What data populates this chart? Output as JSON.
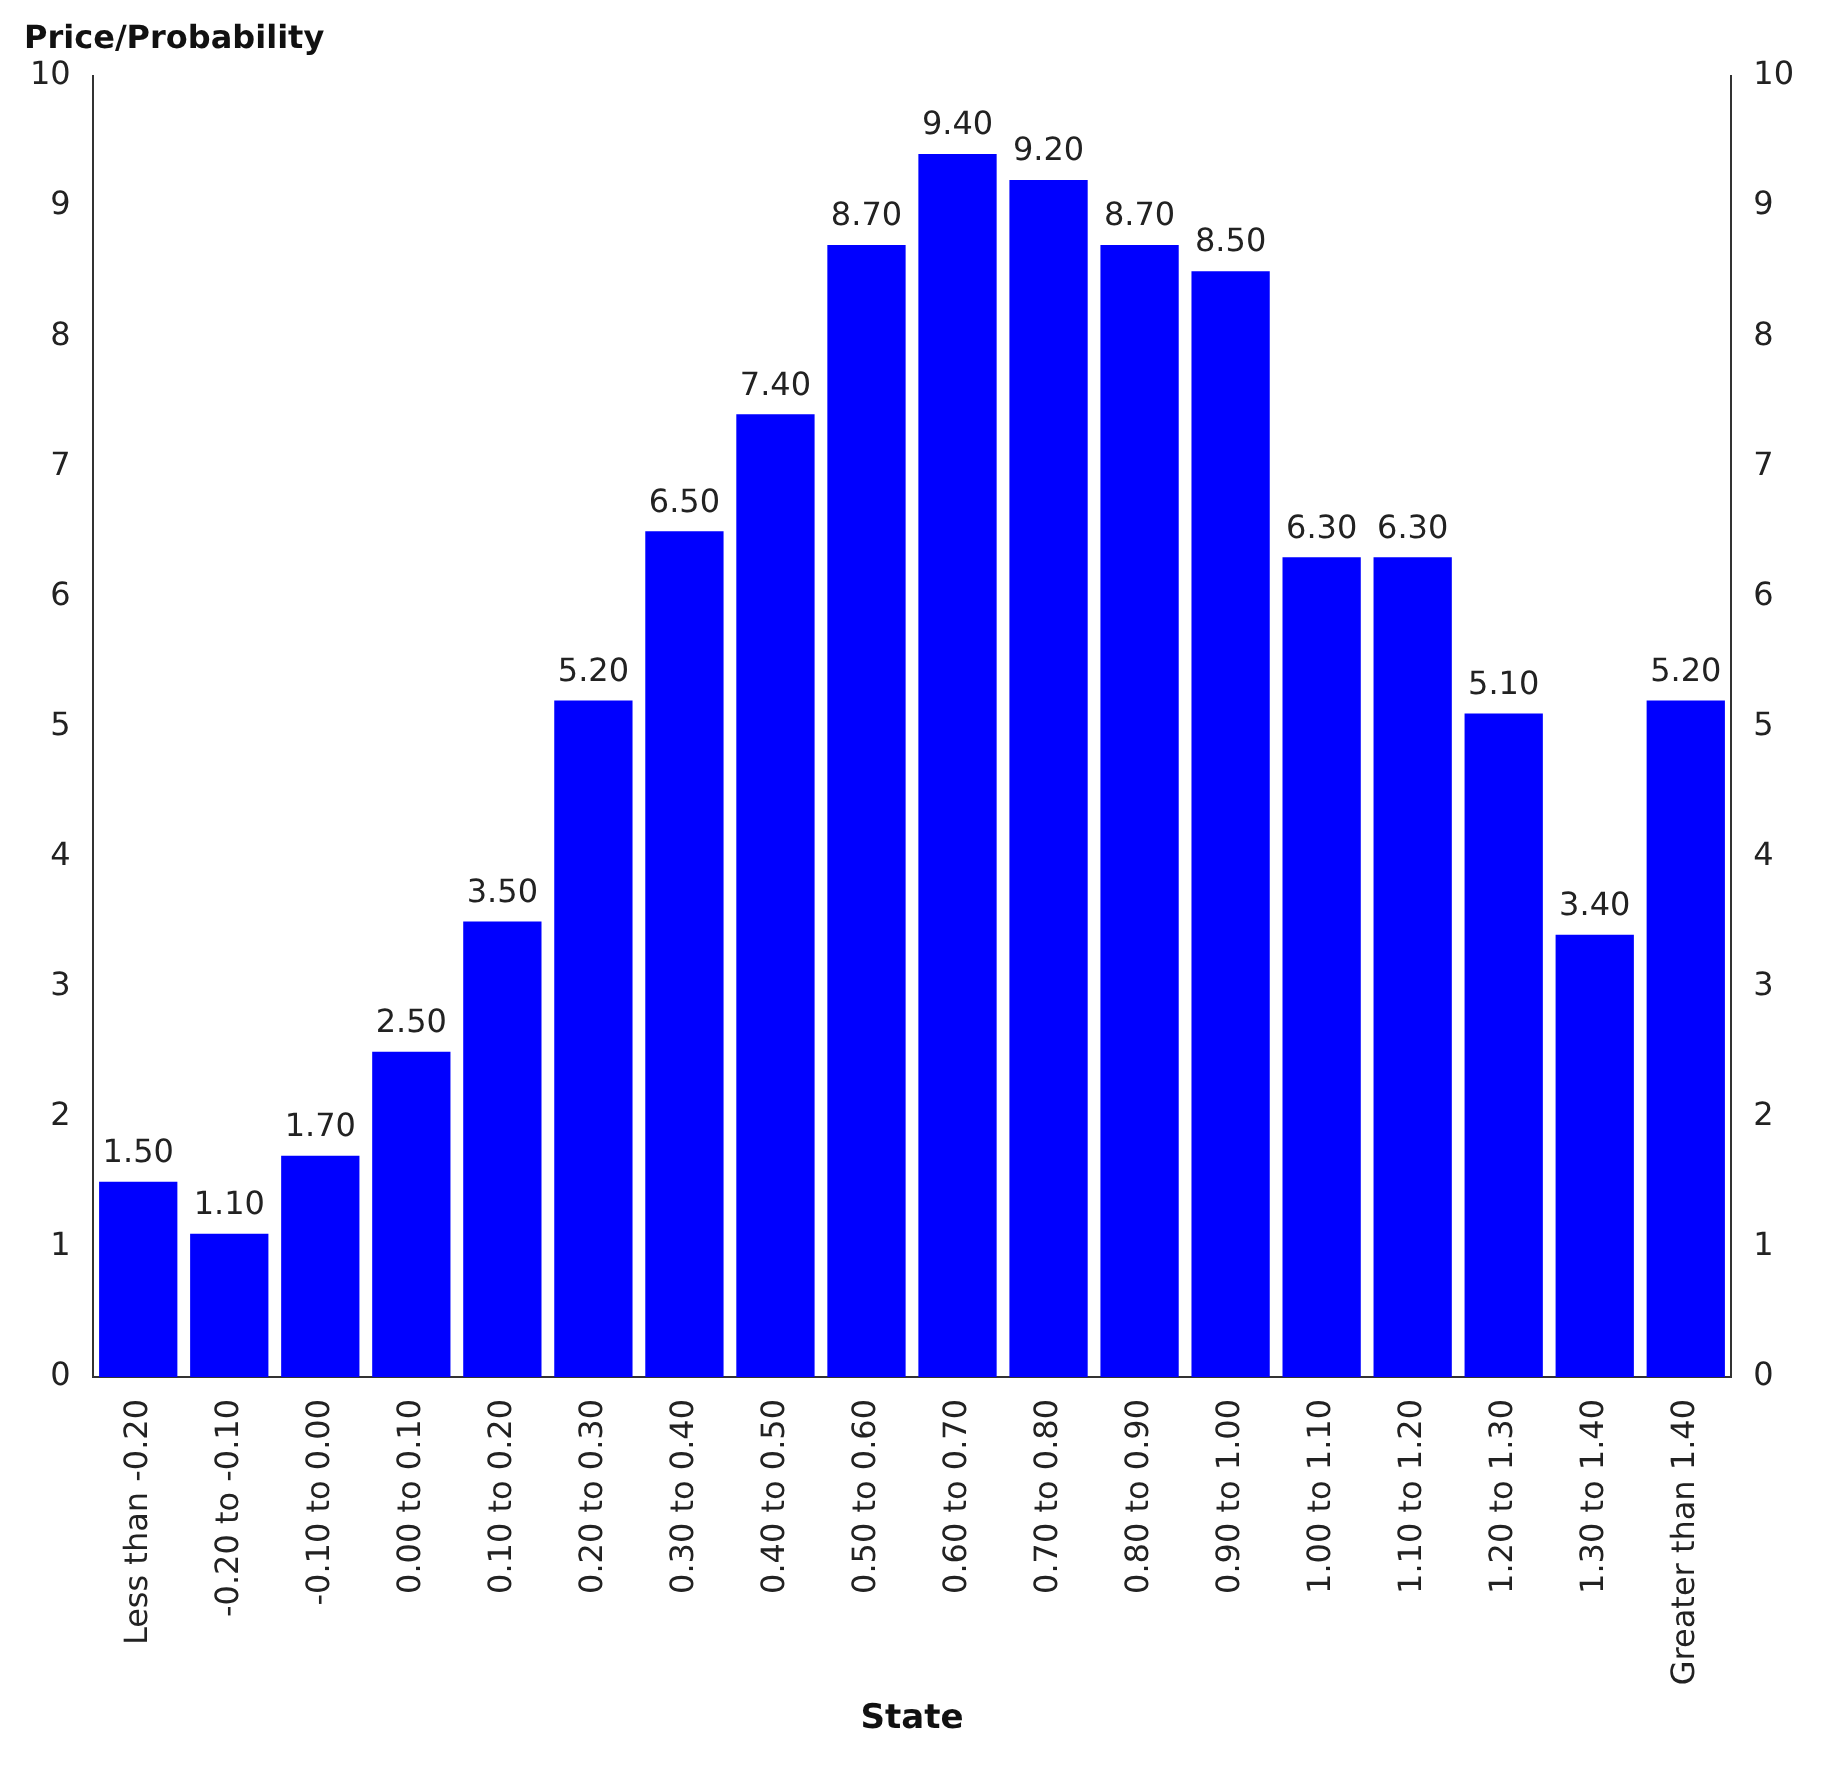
{
  "chart_data": {
    "type": "bar",
    "ylabel": "Price/Probability",
    "xlabel": "State",
    "categories": [
      "Less than -0.20",
      "-0.20 to -0.10",
      "-0.10 to 0.00",
      "0.00 to 0.10",
      "0.10 to 0.20",
      "0.20 to 0.30",
      "0.30 to 0.40",
      "0.40 to 0.50",
      "0.50 to 0.60",
      "0.60 to 0.70",
      "0.70 to 0.80",
      "0.80 to 0.90",
      "0.90 to 1.00",
      "1.00 to 1.10",
      "1.10 to 1.20",
      "1.20 to 1.30",
      "1.30 to 1.40",
      "Greater than 1.40"
    ],
    "values": [
      1.5,
      1.1,
      1.7,
      2.5,
      3.5,
      5.2,
      6.5,
      7.4,
      8.7,
      9.4,
      9.2,
      8.7,
      8.5,
      6.3,
      6.3,
      5.1,
      3.4,
      5.2
    ],
    "value_labels": [
      "1.50",
      "1.10",
      "1.70",
      "2.50",
      "3.50",
      "5.20",
      "6.50",
      "7.40",
      "8.70",
      "9.40",
      "9.20",
      "8.70",
      "8.50",
      "6.30",
      "6.30",
      "5.10",
      "3.40",
      "5.20"
    ],
    "color": "#0000ff",
    "ylim": [
      0,
      10
    ],
    "yticks": [
      0,
      1,
      2,
      3,
      4,
      5,
      6,
      7,
      8,
      9,
      10
    ],
    "y2lim": [
      0,
      10
    ],
    "y2ticks": [
      0,
      1,
      2,
      3,
      4,
      5,
      6,
      7,
      8,
      9,
      10
    ],
    "grid": false,
    "legend": false
  }
}
